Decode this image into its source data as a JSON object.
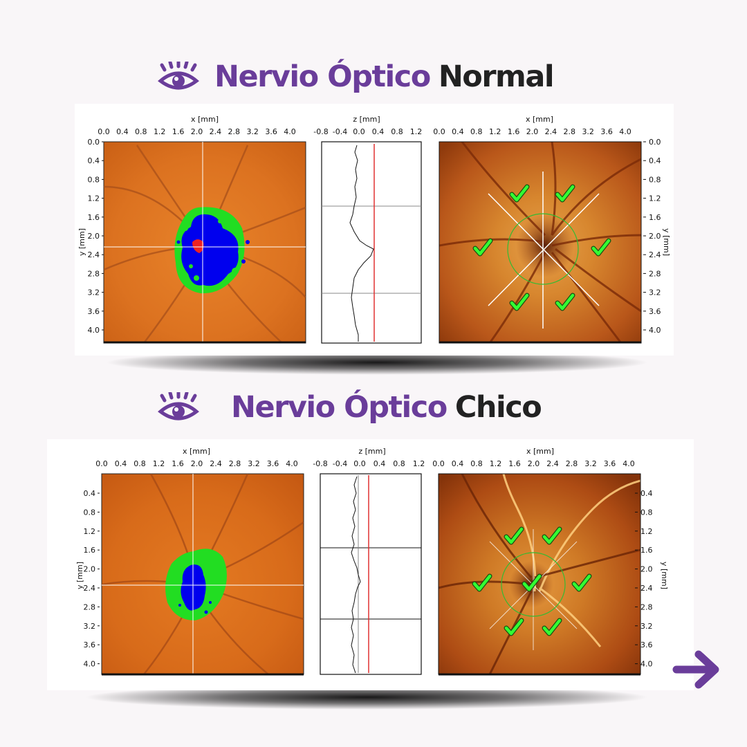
{
  "sections": [
    {
      "id": "normal",
      "title_accent": "Nervio Óptico",
      "title_rest": "Normal",
      "x_axis_label": "x [mm]",
      "z_axis_label": "z [mm]",
      "y_axis_label": "y [mm]",
      "x_ticks": [
        "0.0",
        "0.4",
        "0.8",
        "1.2",
        "1.6",
        "2.0",
        "2.4",
        "2.8",
        "3.2",
        "3.6",
        "4.0"
      ],
      "z_ticks": [
        "-0.8",
        "-0.4",
        "0.0",
        "0.4",
        "0.8",
        "1.2"
      ],
      "y_ticks_left": [
        "0.0",
        "0.4",
        "0.8",
        "1.2",
        "1.6",
        "2.0",
        "2.4",
        "2.8",
        "3.2",
        "3.6",
        "4.0"
      ],
      "y_ticks_right": [
        "0.0",
        "0.4",
        "0.8",
        "1.2",
        "1.6",
        "2.0",
        "2.4",
        "2.8",
        "3.2",
        "3.6",
        "4.0"
      ]
    },
    {
      "id": "chico",
      "title_accent": "Nervio Óptico",
      "title_rest": "Chico",
      "x_axis_label": "x [mm]",
      "z_axis_label": "z [mm]",
      "y_axis_label": "y [mm]",
      "x_ticks": [
        "0.0",
        "0.4",
        "0.8",
        "1.2",
        "1.6",
        "2.0",
        "2.4",
        "2.8",
        "3.2",
        "3.6",
        "4.0"
      ],
      "z_ticks": [
        "-0.8",
        "-0.4",
        "0.0",
        "0.4",
        "0.8",
        "1.2"
      ],
      "y_ticks_left": [
        "0.4",
        "0.8",
        "1.2",
        "1.6",
        "2.0",
        "2.4",
        "2.8",
        "3.2",
        "3.6",
        "4.0"
      ],
      "y_ticks_right": [
        "0.4",
        "0.8",
        "1.2",
        "1.6",
        "2.0",
        "2.4",
        "2.8",
        "3.2",
        "3.6",
        "4.0"
      ]
    }
  ],
  "colors": {
    "accent": "#6a3d9a",
    "text": "#222222",
    "fundus": "#d9701e",
    "cup": "#0000ee",
    "rim": "#22dd22",
    "peak": "#ee2222",
    "profile_marker": "#e03030",
    "checkmark": "#33ff33"
  },
  "icons": {
    "title_icon": "eye-icon",
    "next": "arrow-right-icon",
    "marker": "checkmark-icon"
  }
}
